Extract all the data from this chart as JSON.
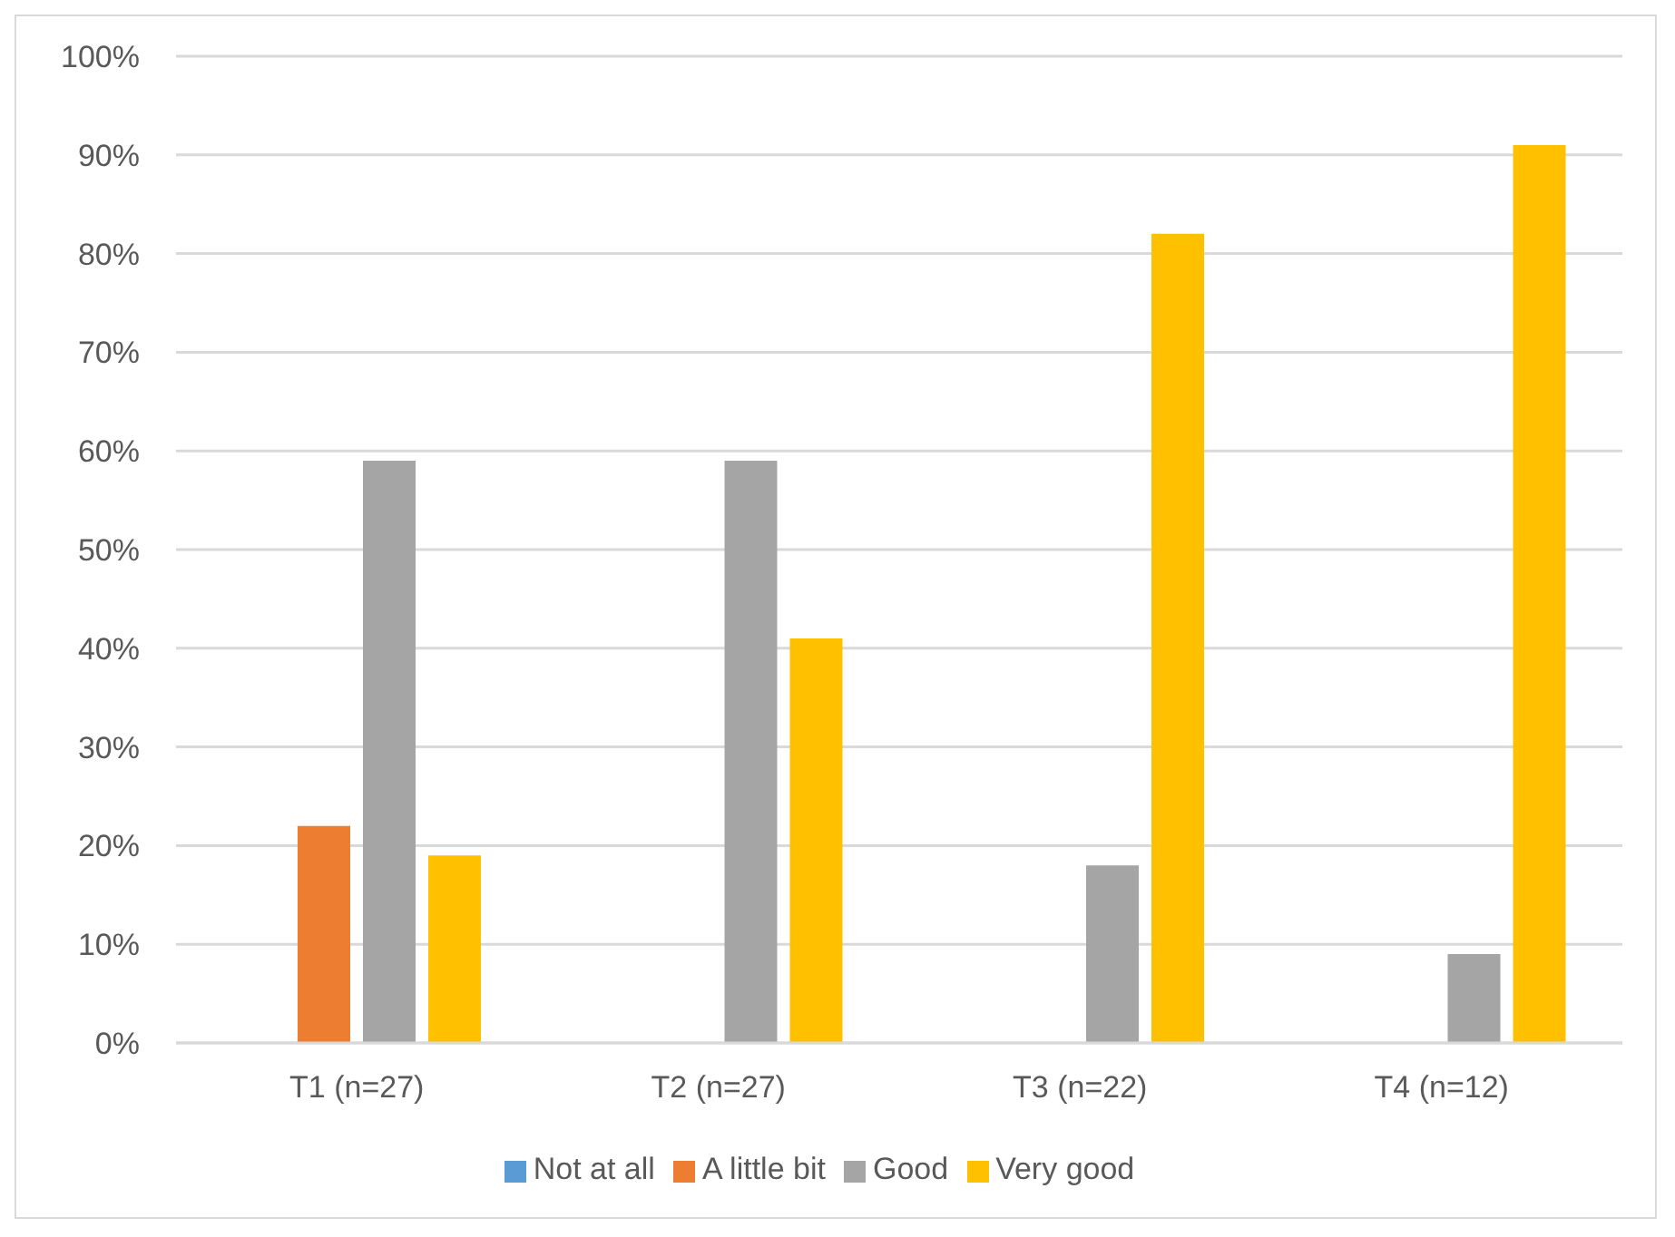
{
  "chart_data": {
    "type": "bar",
    "categories": [
      "T1 (n=27)",
      "T2 (n=27)",
      "T3 (n=22)",
      "T4 (n=12)"
    ],
    "series": [
      {
        "name": "Not at all",
        "color": "#5b9bd5",
        "values": [
          0,
          0,
          0,
          0
        ]
      },
      {
        "name": "A little bit",
        "color": "#ed7d31",
        "values": [
          22,
          0,
          0,
          0
        ]
      },
      {
        "name": "Good",
        "color": "#a5a5a5",
        "values": [
          59,
          59,
          18,
          9
        ]
      },
      {
        "name": "Very good",
        "color": "#ffc000",
        "values": [
          19,
          41,
          82,
          91
        ]
      }
    ],
    "ylim": [
      0,
      100
    ],
    "yticks": [
      {
        "value": 0,
        "label": "0%"
      },
      {
        "value": 10,
        "label": "10%"
      },
      {
        "value": 20,
        "label": "20%"
      },
      {
        "value": 30,
        "label": "30%"
      },
      {
        "value": 40,
        "label": "40%"
      },
      {
        "value": 50,
        "label": "50%"
      },
      {
        "value": 60,
        "label": "60%"
      },
      {
        "value": 70,
        "label": "70%"
      },
      {
        "value": 80,
        "label": "80%"
      },
      {
        "value": 90,
        "label": "90%"
      },
      {
        "value": 100,
        "label": "100%"
      }
    ],
    "grid": "y",
    "legend": "bottom"
  }
}
